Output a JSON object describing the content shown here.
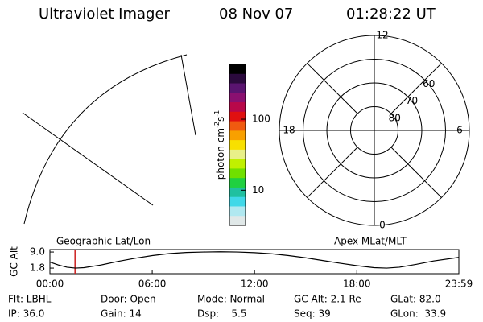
{
  "header": {
    "title": "Ultraviolet Imager",
    "date": "08 Nov 07",
    "time": "01:28:22 UT"
  },
  "colorbar": {
    "label": {
      "base": "photon cm",
      "exp1": "-2",
      "unit2": "s",
      "exp2": "-1"
    },
    "scale": "log",
    "lim": [
      3.2,
      590
    ],
    "ticks": [
      10,
      100
    ],
    "colors": [
      "#000000",
      "#2b0a3d",
      "#5a1470",
      "#8a1070",
      "#b8084a",
      "#e01010",
      "#f05a10",
      "#f8a000",
      "#f8e000",
      "#e8f088",
      "#c0f000",
      "#70e000",
      "#20d040",
      "#20c0a0",
      "#40d8e8",
      "#b0e8f0",
      "#e0e8e8"
    ]
  },
  "polar": {
    "rlim": [
      90,
      50
    ],
    "rticks": [
      80,
      70,
      60
    ],
    "hours": [
      12,
      6,
      0,
      18
    ]
  },
  "chart_data": {
    "type": "line",
    "y_label": "GC Alt",
    "left_label": "Geographic Lat/Lon",
    "right_label": "Apex MLat/MLT",
    "x": [
      0,
      0.5,
      1,
      1.5,
      2,
      3,
      4,
      5,
      6,
      7,
      8,
      9,
      10,
      11,
      12,
      13,
      14,
      15,
      16,
      17,
      18,
      19,
      19.75,
      20.5,
      21.5,
      22.5,
      23.98
    ],
    "series": [
      {
        "color": "#000000",
        "values": [
          4.5,
          3.2,
          2.2,
          1.8,
          2.0,
          3.2,
          4.8,
          6.2,
          7.4,
          8.3,
          8.8,
          9.0,
          9.1,
          9.0,
          8.7,
          8.2,
          7.4,
          6.4,
          5.2,
          4.0,
          2.9,
          2.0,
          1.8,
          2.2,
          3.5,
          5.0,
          6.6
        ]
      }
    ],
    "xlim": [
      0,
      23.983
    ],
    "xticks": [
      {
        "value": 0,
        "label": "00:00"
      },
      {
        "value": 6,
        "label": "06:00"
      },
      {
        "value": 12,
        "label": "12:00"
      },
      {
        "value": 18,
        "label": "18:00"
      },
      {
        "value": 23.983,
        "label": "23:59"
      }
    ],
    "ylim": [
      -0.7,
      10.1
    ],
    "yticks": [
      {
        "value": 9.0,
        "label": "9.0"
      },
      {
        "value": 1.8,
        "label": "1.8"
      }
    ],
    "marker": {
      "value": 1.473,
      "color": "#cc2020"
    }
  },
  "info": [
    [
      "Flt: LBHL",
      "Door: Open",
      "Mode: Normal",
      "GC Alt: 2.1 Re",
      "GLat: 82.0"
    ],
    [
      "IP: 36.0",
      "Gain: 14",
      "Dsp:    5.5",
      "Seq: 39",
      "GLon:  33.9"
    ]
  ]
}
